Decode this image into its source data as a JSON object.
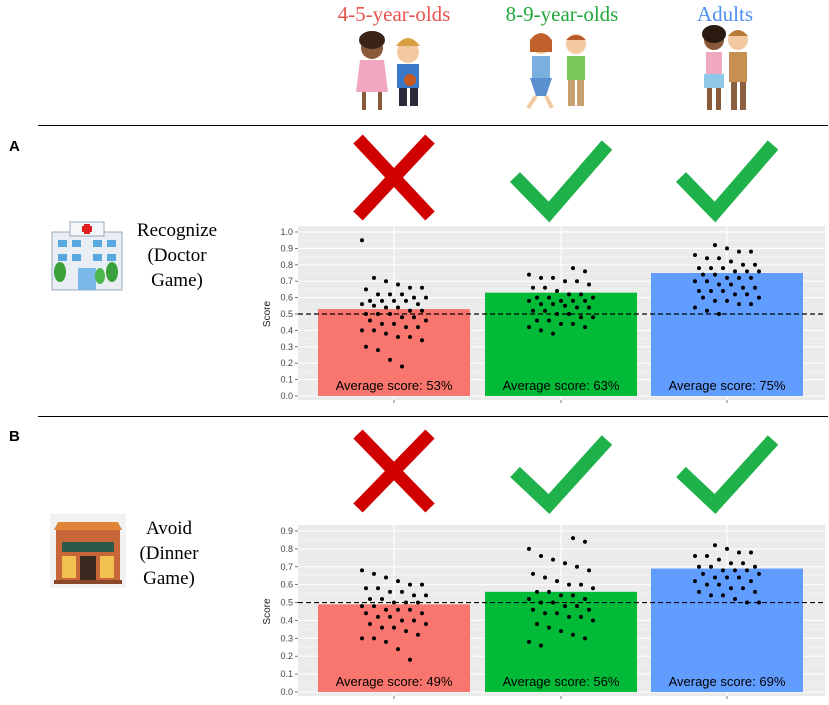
{
  "groups": [
    {
      "name": "4-5-year-olds",
      "color": "#e8534f"
    },
    {
      "name": "8-9-year-olds",
      "color": "#22a83a"
    },
    {
      "name": "Adults",
      "color": "#4f8ff0"
    }
  ],
  "panels": [
    {
      "label": "A",
      "condition": [
        "Recognize",
        "(Doctor",
        "Game)"
      ],
      "icon": "hospital-icon"
    },
    {
      "label": "B",
      "condition": [
        "Avoid",
        "(Dinner",
        "Game)"
      ],
      "icon": "restaurant-icon"
    }
  ],
  "colors": {
    "bar1": "#f8766d",
    "bar2": "#00ba38",
    "bar3": "#619cff",
    "cross": "#d00000",
    "check": "#1fb14a",
    "panel_bg": "#ebebeb"
  },
  "chart_data": [
    {
      "type": "bar",
      "panel": "A",
      "ylabel": "Score",
      "ylim": [
        0,
        1.0
      ],
      "yticks": [
        "0.0",
        "0.1",
        "0.2",
        "0.3",
        "0.4",
        "0.5",
        "0.6",
        "0.7",
        "0.8",
        "0.9",
        "1.0"
      ],
      "chance_line": 0.5,
      "categories": [
        "4-5-year-olds",
        "8-9-year-olds",
        "Adults"
      ],
      "values": [
        0.53,
        0.63,
        0.75
      ],
      "bar_labels": [
        "Average score: 53%",
        "Average score: 63%",
        "Average score: 75%"
      ],
      "significance": [
        "cross-icon",
        "check-icon",
        "check-icon"
      ],
      "points": [
        [
          0.95,
          0.72,
          0.7,
          0.68,
          0.66,
          0.66,
          0.65,
          0.62,
          0.62,
          0.62,
          0.6,
          0.6,
          0.58,
          0.58,
          0.58,
          0.58,
          0.56,
          0.56,
          0.55,
          0.54,
          0.54,
          0.52,
          0.52,
          0.5,
          0.5,
          0.5,
          0.48,
          0.48,
          0.46,
          0.46,
          0.44,
          0.44,
          0.42,
          0.42,
          0.4,
          0.4,
          0.38,
          0.36,
          0.36,
          0.34,
          0.3,
          0.28,
          0.22,
          0.18
        ],
        [
          0.78,
          0.76,
          0.74,
          0.72,
          0.72,
          0.7,
          0.7,
          0.68,
          0.66,
          0.66,
          0.64,
          0.62,
          0.62,
          0.6,
          0.6,
          0.6,
          0.58,
          0.58,
          0.58,
          0.58,
          0.56,
          0.56,
          0.55,
          0.54,
          0.54,
          0.52,
          0.52,
          0.5,
          0.5,
          0.48,
          0.48,
          0.46,
          0.46,
          0.44,
          0.44,
          0.42,
          0.42,
          0.4,
          0.38
        ],
        [
          0.92,
          0.9,
          0.88,
          0.88,
          0.86,
          0.84,
          0.84,
          0.82,
          0.8,
          0.8,
          0.78,
          0.78,
          0.78,
          0.76,
          0.76,
          0.76,
          0.74,
          0.74,
          0.72,
          0.72,
          0.72,
          0.7,
          0.7,
          0.68,
          0.68,
          0.66,
          0.66,
          0.64,
          0.64,
          0.64,
          0.62,
          0.62,
          0.6,
          0.6,
          0.58,
          0.58,
          0.56,
          0.56,
          0.54,
          0.52,
          0.5
        ]
      ]
    },
    {
      "type": "bar",
      "panel": "B",
      "ylabel": "Score",
      "ylim": [
        0,
        0.9
      ],
      "yticks": [
        "0.0",
        "0.1",
        "0.2",
        "0.3",
        "0.4",
        "0.5",
        "0.6",
        "0.7",
        "0.8",
        "0.9"
      ],
      "chance_line": 0.5,
      "categories": [
        "4-5-year-olds",
        "8-9-year-olds",
        "Adults"
      ],
      "values": [
        0.49,
        0.56,
        0.69
      ],
      "bar_labels": [
        "Average score: 49%",
        "Average score: 56%",
        "Average score: 69%"
      ],
      "significance": [
        "cross-icon",
        "check-icon",
        "check-icon"
      ],
      "points": [
        [
          0.68,
          0.66,
          0.64,
          0.62,
          0.6,
          0.6,
          0.58,
          0.58,
          0.56,
          0.56,
          0.54,
          0.54,
          0.52,
          0.52,
          0.5,
          0.5,
          0.5,
          0.48,
          0.48,
          0.46,
          0.46,
          0.46,
          0.44,
          0.44,
          0.42,
          0.42,
          0.4,
          0.4,
          0.38,
          0.38,
          0.36,
          0.36,
          0.34,
          0.32,
          0.3,
          0.3,
          0.28,
          0.24,
          0.18
        ],
        [
          0.86,
          0.84,
          0.8,
          0.76,
          0.74,
          0.72,
          0.7,
          0.68,
          0.66,
          0.64,
          0.62,
          0.6,
          0.6,
          0.58,
          0.56,
          0.56,
          0.54,
          0.54,
          0.52,
          0.52,
          0.5,
          0.5,
          0.48,
          0.48,
          0.46,
          0.46,
          0.44,
          0.44,
          0.42,
          0.42,
          0.4,
          0.38,
          0.36,
          0.34,
          0.32,
          0.3,
          0.28,
          0.26
        ],
        [
          0.82,
          0.8,
          0.78,
          0.78,
          0.76,
          0.76,
          0.74,
          0.72,
          0.72,
          0.7,
          0.7,
          0.7,
          0.68,
          0.68,
          0.68,
          0.66,
          0.66,
          0.64,
          0.64,
          0.64,
          0.62,
          0.62,
          0.6,
          0.6,
          0.58,
          0.58,
          0.56,
          0.56,
          0.54,
          0.54,
          0.52,
          0.5,
          0.5
        ]
      ]
    }
  ]
}
